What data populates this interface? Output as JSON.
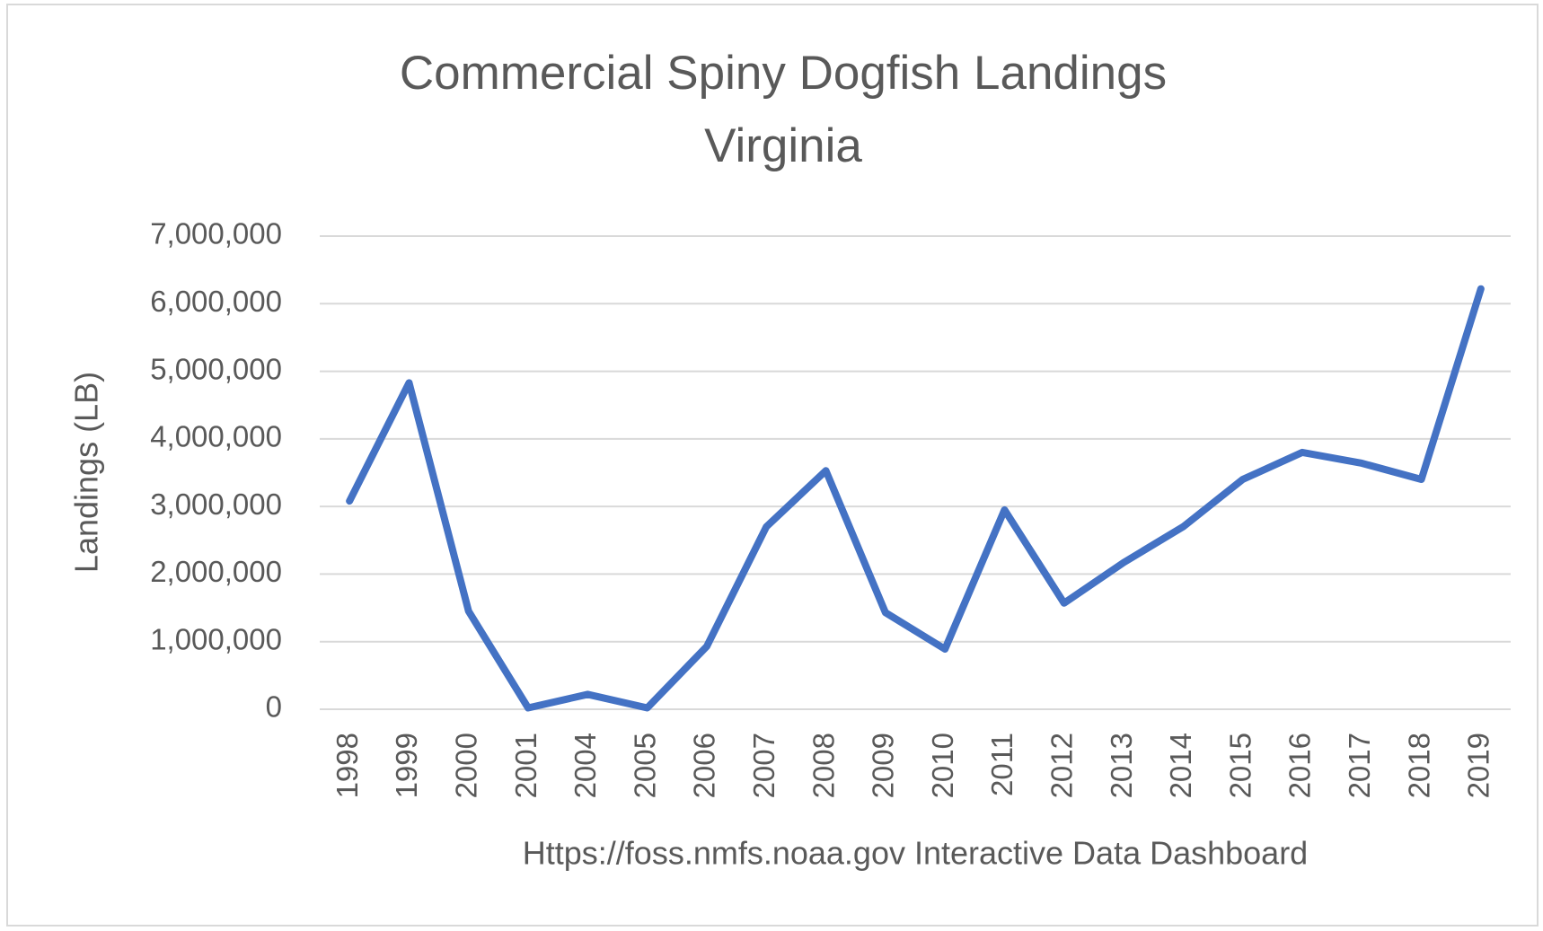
{
  "chart_data": {
    "type": "line",
    "title": "Commercial Spiny Dogfish Landings",
    "subtitle": "Virginia",
    "y_label": "Landings (LB)",
    "x_label": "Https://foss.nmfs.noaa.gov Interactive Data Dashboard",
    "categories": [
      "1998",
      "1999",
      "2000",
      "2001",
      "2004",
      "2005",
      "2006",
      "2007",
      "2008",
      "2009",
      "2010",
      "2011",
      "2012",
      "2013",
      "2014",
      "2015",
      "2016",
      "2017",
      "2018",
      "2019"
    ],
    "series": [
      {
        "name": "Landings",
        "color": "#4472c4",
        "values": [
          3080000,
          4830000,
          1450000,
          20000,
          220000,
          20000,
          930000,
          2700000,
          3530000,
          1430000,
          890000,
          2950000,
          1570000,
          2170000,
          2700000,
          3400000,
          3800000,
          3640000,
          3400000,
          6220000
        ]
      }
    ],
    "ylim": [
      0,
      7000000
    ],
    "yticks": [
      0,
      {
        "value": 1000000,
        "label": "1,000,000"
      },
      {
        "value": 2000000,
        "label": "2,000,000"
      },
      {
        "value": 3000000,
        "label": "3,000,000"
      },
      {
        "value": 4000000,
        "label": "4,000,000"
      },
      {
        "value": 5000000,
        "label": "5,000,000"
      },
      {
        "value": 6000000,
        "label": "6,000,000"
      },
      {
        "value": 7000000,
        "label": "7,000,000"
      }
    ],
    "grid": true
  }
}
